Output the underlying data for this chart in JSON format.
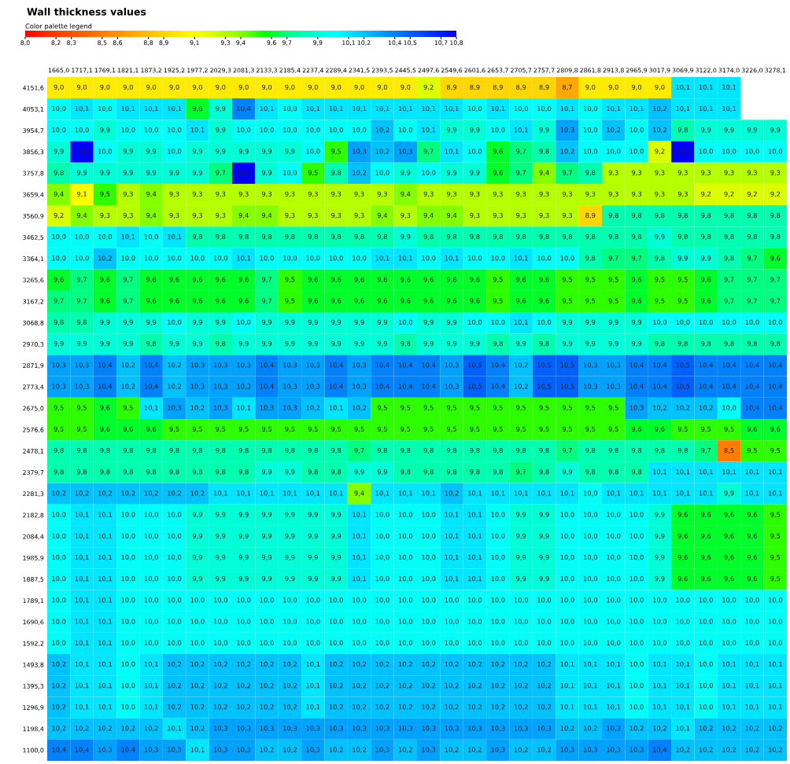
{
  "chart_data": {
    "type": "heatmap",
    "title": "Wall thickness values",
    "clabel": "Color palette legend",
    "colors": [
      "#ff0000",
      "#ff3300",
      "#ff5500",
      "#ff7700",
      "#ff9900",
      "#ffbb00",
      "#ffdd00",
      "#ffff00",
      "#ccff00",
      "#88ff00",
      "#00ff00",
      "#00ff88",
      "#00ffcc",
      "#00ffff",
      "#00ccff",
      "#0099ff",
      "#0066ff",
      "#0033ff",
      "#0000ff"
    ],
    "clim": [
      8.0,
      10.8
    ],
    "cticks": [
      {
        "value": 8.0,
        "label": "8,0"
      },
      {
        "value": 8.2,
        "label": "8,2"
      },
      {
        "value": 8.3,
        "label": "8,3"
      },
      {
        "value": 8.5,
        "label": "8,5"
      },
      {
        "value": 8.6,
        "label": "8,6"
      },
      {
        "value": 8.8,
        "label": "8,8"
      },
      {
        "value": 8.9,
        "label": "8,9"
      },
      {
        "value": 9.1,
        "label": "9,1"
      },
      {
        "value": 9.3,
        "label": "9,3"
      },
      {
        "value": 9.4,
        "label": "9,4"
      },
      {
        "value": 9.6,
        "label": "9,6"
      },
      {
        "value": 9.7,
        "label": "9,7"
      },
      {
        "value": 9.9,
        "label": "9,9"
      },
      {
        "value": 10.1,
        "label": "10,1"
      },
      {
        "value": 10.2,
        "label": "10,2"
      },
      {
        "value": 10.4,
        "label": "10,4"
      },
      {
        "value": 10.5,
        "label": "10,5"
      },
      {
        "value": 10.7,
        "label": "10,7"
      },
      {
        "value": 10.8,
        "label": "10,8"
      }
    ],
    "categories": [
      "1665,0",
      "1717,1",
      "1769,1",
      "1821,1",
      "1873,2",
      "1925,2",
      "1977,2",
      "2029,3",
      "2081,3",
      "2133,3",
      "2185,4",
      "2237,4",
      "2289,4",
      "2341,5",
      "2393,5",
      "2445,5",
      "2497,6",
      "2549,6",
      "2601,6",
      "2653,7",
      "2705,7",
      "2757,7",
      "2809,8",
      "2861,8",
      "2913,8",
      "2965,9",
      "3017,9",
      "3069,9",
      "3122,0",
      "3174,0",
      "3226,0",
      "3278,1"
    ],
    "y_categories": [
      "4151,6",
      "4053,1",
      "3954,7",
      "3856,3",
      "3757,8",
      "3659,4",
      "3560,9",
      "3462,5",
      "3364,1",
      "3265,6",
      "3167,2",
      "3068,8",
      "2970,3",
      "2871,9",
      "2773,4",
      "2675,0",
      "2576,6",
      "2478,1",
      "2379,7",
      "2281,3",
      "2182,8",
      "2084,4",
      "1985,9",
      "1887,5",
      "1789,1",
      "1690,6",
      "1592,2",
      "1493,8",
      "1395,3",
      "1296,9",
      "1198,4",
      "1100,0"
    ],
    "cell_labels": [
      [
        "9,0",
        "9,0",
        "9,0",
        "9,0",
        "9,0",
        "9,0",
        "9,0",
        "9,0",
        "9,0",
        "9,0",
        "9,0",
        "9,0",
        "9,0",
        "9,0",
        "9,0",
        "9,0",
        "9,2",
        "8,9",
        "8,9",
        "8,9",
        "8,9",
        "8,9",
        "8,7",
        "9,0",
        "9,0",
        "9,0",
        "9,0",
        "10,1",
        "10,1",
        "10,1",
        null,
        null
      ],
      [
        "10,0",
        "10,1",
        "10,0",
        "10,1",
        "10,1",
        "10,1",
        "9,6",
        "9,9",
        "10,4",
        "10,1",
        "10,0",
        "10,1",
        "10,1",
        "10,1",
        "10,1",
        "10,1",
        "10,1",
        "10,1",
        "10,0",
        "10,1",
        "10,0",
        "10,0",
        "10,1",
        "10,0",
        "10,1",
        "10,1",
        "10,2",
        "10,1",
        "10,1",
        "10,1",
        null,
        null
      ],
      [
        "10,0",
        "10,0",
        "9,9",
        "10,0",
        "10,0",
        "10,0",
        "10,1",
        "9,9",
        "10,0",
        "10,0",
        "10,0",
        "10,0",
        "10,0",
        "10,0",
        "10,2",
        "10,0",
        "10,1",
        "9,9",
        "9,9",
        "10,0",
        "10,1",
        "9,9",
        "10,3",
        "10,0",
        "10,2",
        "10,0",
        "10,2",
        "9,8",
        "9,9",
        "9,9",
        "9,9",
        "9,9"
      ],
      [
        "9,9",
        "10,8",
        "10,0",
        "9,9",
        "9,9",
        "10,0",
        "9,9",
        "9,9",
        "9,9",
        "9,9",
        "9,9",
        "10,0",
        "9,5",
        "10,3",
        "10,2",
        "10,3",
        "9,7",
        "10,1",
        "10,0",
        "9,6",
        "9,7",
        "9,8",
        "10,2",
        "10,0",
        "10,0",
        "10,0",
        "9,2",
        "10,8",
        "10,0",
        "10,0",
        "10,0",
        "10,0"
      ],
      [
        "9,8",
        "9,9",
        "9,9",
        "9,9",
        "9,9",
        "9,9",
        "9,9",
        "9,7",
        "10,8",
        "9,9",
        "10,0",
        "9,5",
        "9,8",
        "10,2",
        "10,0",
        "9,9",
        "10,0",
        "9,9",
        "9,9",
        "9,6",
        "9,7",
        "9,4",
        "9,7",
        "9,8",
        "9,3",
        "9,3",
        "9,3",
        "9,3",
        "9,3",
        "9,3",
        "9,3",
        "9,3"
      ],
      [
        "9,4",
        "9,1",
        "9,5",
        "9,3",
        "9,4",
        "9,3",
        "9,3",
        "9,3",
        "9,3",
        "9,3",
        "9,3",
        "9,3",
        "9,3",
        "9,3",
        "9,3",
        "9,4",
        "9,3",
        "9,3",
        "9,3",
        "9,3",
        "9,3",
        "9,3",
        "9,3",
        "9,3",
        "9,3",
        "9,3",
        "9,3",
        "9,3",
        "9,2",
        "9,2",
        "9,2",
        "9,2"
      ],
      [
        "9,2",
        "9,4",
        "9,3",
        "9,3",
        "9,4",
        "9,3",
        "9,3",
        "9,3",
        "9,4",
        "9,4",
        "9,3",
        "9,3",
        "9,3",
        "9,3",
        "9,4",
        "9,3",
        "9,4",
        "9,4",
        "9,3",
        "9,3",
        "9,3",
        "9,3",
        "9,3",
        "8,9",
        "9,8",
        "9,8",
        "9,8",
        "9,8",
        "9,8",
        "9,8",
        "9,8",
        "9,8"
      ],
      [
        "10,0",
        "10,0",
        "10,0",
        "10,1",
        "10,0",
        "10,1",
        "9,8",
        "9,8",
        "9,8",
        "9,8",
        "9,8",
        "9,8",
        "9,8",
        "9,8",
        "9,8",
        "9,9",
        "9,8",
        "9,8",
        "9,8",
        "9,8",
        "9,8",
        "9,8",
        "9,8",
        "9,8",
        "9,8",
        "9,8",
        "9,9",
        "9,8",
        "9,8",
        "9,8",
        "9,8",
        "9,8"
      ],
      [
        "10,0",
        "10,0",
        "10,2",
        "10,0",
        "10,0",
        "10,0",
        "10,0",
        "10,0",
        "10,1",
        "10,0",
        "10,0",
        "10,0",
        "10,0",
        "10,0",
        "10,1",
        "10,1",
        "10,0",
        "10,1",
        "10,0",
        "10,0",
        "10,1",
        "10,0",
        "10,0",
        "9,8",
        "9,7",
        "9,7",
        "9,8",
        "9,9",
        "9,9",
        "9,8",
        "9,7",
        "9,6"
      ],
      [
        "9,6",
        "9,7",
        "9,6",
        "9,7",
        "9,6",
        "9,6",
        "9,6",
        "9,6",
        "9,6",
        "9,7",
        "9,5",
        "9,6",
        "9,6",
        "9,6",
        "9,6",
        "9,6",
        "9,6",
        "9,6",
        "9,6",
        "9,5",
        "9,6",
        "9,6",
        "9,5",
        "9,5",
        "9,5",
        "9,6",
        "9,5",
        "9,5",
        "9,6",
        "9,7",
        "9,7",
        "9,7"
      ],
      [
        "9,7",
        "9,7",
        "9,6",
        "9,7",
        "9,6",
        "9,6",
        "9,6",
        "9,6",
        "9,6",
        "9,7",
        "9,5",
        "9,6",
        "9,6",
        "9,6",
        "9,6",
        "9,6",
        "9,6",
        "9,6",
        "9,6",
        "9,5",
        "9,6",
        "9,6",
        "9,5",
        "9,5",
        "9,5",
        "9,6",
        "9,5",
        "9,5",
        "9,6",
        "9,7",
        "9,7",
        "9,7"
      ],
      [
        "9,8",
        "9,8",
        "9,9",
        "9,9",
        "9,9",
        "10,0",
        "9,9",
        "9,9",
        "10,0",
        "9,9",
        "9,9",
        "9,9",
        "9,9",
        "9,9",
        "9,9",
        "10,0",
        "9,9",
        "9,9",
        "10,0",
        "10,0",
        "10,1",
        "10,0",
        "9,9",
        "9,9",
        "9,9",
        "9,9",
        "10,0",
        "10,0",
        "10,0",
        "10,0",
        "10,0",
        "10,0"
      ],
      [
        "9,9",
        "9,9",
        "9,9",
        "9,9",
        "9,8",
        "9,9",
        "9,9",
        "9,8",
        "9,9",
        "9,9",
        "9,9",
        "9,9",
        "9,9",
        "9,9",
        "9,9",
        "9,8",
        "9,9",
        "9,9",
        "9,9",
        "9,8",
        "9,9",
        "9,8",
        "9,9",
        "9,9",
        "9,9",
        "9,9",
        "9,8",
        "9,8",
        "9,8",
        "9,8",
        "9,8",
        "9,8"
      ],
      [
        "10,3",
        "10,3",
        "10,4",
        "10,2",
        "10,4",
        "10,2",
        "10,3",
        "10,3",
        "10,3",
        "10,4",
        "10,3",
        "10,3",
        "10,4",
        "10,3",
        "10,4",
        "10,4",
        "10,4",
        "10,3",
        "10,5",
        "10,4",
        "10,2",
        "10,5",
        "10,5",
        "10,3",
        "10,3",
        "10,4",
        "10,4",
        "10,5",
        "10,4",
        "10,4",
        "10,4",
        "10,4"
      ],
      [
        "10,3",
        "10,3",
        "10,4",
        "10,2",
        "10,4",
        "10,2",
        "10,3",
        "10,3",
        "10,3",
        "10,4",
        "10,3",
        "10,3",
        "10,4",
        "10,3",
        "10,4",
        "10,4",
        "10,4",
        "10,3",
        "10,5",
        "10,4",
        "10,2",
        "10,5",
        "10,5",
        "10,3",
        "10,3",
        "10,4",
        "10,4",
        "10,5",
        "10,4",
        "10,4",
        "10,4",
        "10,4"
      ],
      [
        "9,5",
        "9,5",
        "9,6",
        "9,5",
        "10,1",
        "10,3",
        "10,2",
        "10,3",
        "10,1",
        "10,3",
        "10,3",
        "10,2",
        "10,1",
        "10,2",
        "9,5",
        "9,5",
        "9,5",
        "9,5",
        "9,5",
        "9,5",
        "9,5",
        "9,5",
        "9,5",
        "9,5",
        "9,5",
        "10,3",
        "10,2",
        "10,2",
        "10,2",
        "10,0",
        "10,4",
        "10,4"
      ],
      [
        "9,5",
        "9,5",
        "9,6",
        "9,6",
        "9,6",
        "9,5",
        "9,5",
        "9,5",
        "9,5",
        "9,5",
        "9,5",
        "9,5",
        "9,5",
        "9,5",
        "9,5",
        "9,5",
        "9,5",
        "9,5",
        "9,5",
        "9,5",
        "9,5",
        "9,5",
        "9,5",
        "9,5",
        "9,5",
        "9,6",
        "9,6",
        "9,5",
        "9,5",
        "9,5",
        "9,6",
        "9,6"
      ],
      [
        "9,8",
        "9,8",
        "9,8",
        "9,8",
        "9,8",
        "9,8",
        "9,8",
        "9,8",
        "9,8",
        "9,8",
        "9,8",
        "9,8",
        "9,8",
        "9,7",
        "9,8",
        "9,8",
        "9,8",
        "9,8",
        "9,8",
        "9,8",
        "9,8",
        "9,8",
        "9,7",
        "9,8",
        "9,8",
        "9,8",
        "9,8",
        "9,8",
        "9,7",
        "8,5",
        "9,5",
        "9,5"
      ],
      [
        "9,8",
        "9,8",
        "9,8",
        "9,8",
        "9,8",
        "9,8",
        "9,8",
        "9,8",
        "9,8",
        "9,9",
        "9,9",
        "9,8",
        "9,8",
        "9,9",
        "9,9",
        "9,8",
        "9,8",
        "9,8",
        "9,8",
        "9,8",
        "9,7",
        "9,8",
        "9,9",
        "9,8",
        "9,8",
        "9,8",
        "10,1",
        "10,1",
        "10,1",
        "10,1",
        "10,1",
        "10,1"
      ],
      [
        "10,2",
        "10,2",
        "10,2",
        "10,2",
        "10,2",
        "10,2",
        "10,2",
        "10,1",
        "10,1",
        "10,1",
        "10,1",
        "10,1",
        "10,1",
        "9,4",
        "10,1",
        "10,1",
        "10,1",
        "10,2",
        "10,1",
        "10,1",
        "10,1",
        "10,1",
        "10,1",
        "10,0",
        "10,1",
        "10,1",
        "10,1",
        "10,1",
        "10,1",
        "9,9",
        "10,1",
        "10,1"
      ],
      [
        "10,0",
        "10,1",
        "10,1",
        "10,0",
        "10,0",
        "10,0",
        "9,9",
        "9,9",
        "9,9",
        "9,9",
        "9,9",
        "9,9",
        "9,9",
        "10,1",
        "10,0",
        "10,0",
        "10,0",
        "10,1",
        "10,1",
        "10,0",
        "9,9",
        "9,9",
        "10,0",
        "10,0",
        "10,0",
        "10,0",
        "9,9",
        "9,6",
        "9,6",
        "9,6",
        "9,6",
        "9,5"
      ],
      [
        "10,0",
        "10,1",
        "10,1",
        "10,0",
        "10,0",
        "10,0",
        "9,9",
        "9,9",
        "9,9",
        "9,9",
        "9,9",
        "9,9",
        "9,9",
        "10,1",
        "10,0",
        "10,0",
        "10,0",
        "10,1",
        "10,1",
        "10,0",
        "9,9",
        "9,9",
        "10,0",
        "10,0",
        "10,0",
        "10,0",
        "9,9",
        "9,6",
        "9,6",
        "9,6",
        "9,6",
        "9,5"
      ],
      [
        "10,0",
        "10,1",
        "10,1",
        "10,0",
        "10,0",
        "10,0",
        "9,9",
        "9,9",
        "9,9",
        "9,9",
        "9,9",
        "9,9",
        "9,9",
        "10,1",
        "10,0",
        "10,0",
        "10,0",
        "10,1",
        "10,1",
        "10,0",
        "9,9",
        "9,9",
        "10,0",
        "10,0",
        "10,0",
        "10,0",
        "9,9",
        "9,6",
        "9,6",
        "9,6",
        "9,6",
        "9,5"
      ],
      [
        "10,0",
        "10,1",
        "10,1",
        "10,0",
        "10,0",
        "10,0",
        "9,9",
        "9,9",
        "9,9",
        "9,9",
        "9,9",
        "9,9",
        "9,9",
        "10,1",
        "10,0",
        "10,0",
        "10,0",
        "10,1",
        "10,1",
        "10,0",
        "9,9",
        "9,9",
        "10,0",
        "10,0",
        "10,0",
        "10,0",
        "9,9",
        "9,6",
        "9,6",
        "9,6",
        "9,6",
        "9,5"
      ],
      [
        "10,0",
        "10,1",
        "10,1",
        "10,0",
        "10,0",
        "10,0",
        "10,0",
        "10,0",
        "10,0",
        "10,0",
        "10,0",
        "10,0",
        "10,0",
        "10,0",
        "10,0",
        "10,0",
        "10,0",
        "10,0",
        "10,0",
        "10,0",
        "10,0",
        "10,0",
        "10,0",
        "10,0",
        "10,0",
        "10,0",
        "10,0",
        "10,0",
        "10,0",
        "10,0",
        "10,0",
        "10,0"
      ],
      [
        "10,0",
        "10,1",
        "10,1",
        "10,0",
        "10,0",
        "10,0",
        "10,0",
        "10,0",
        "10,0",
        "10,0",
        "10,0",
        "10,0",
        "10,0",
        "10,0",
        "10,0",
        "10,0",
        "10,0",
        "10,0",
        "10,0",
        "10,0",
        "10,0",
        "10,0",
        "10,0",
        "10,0",
        "10,0",
        "10,0",
        "10,0",
        "10,0",
        "10,0",
        "10,0",
        "10,0",
        "10,0"
      ],
      [
        "10,0",
        "10,1",
        "10,1",
        "10,0",
        "10,0",
        "10,0",
        "10,0",
        "10,0",
        "10,0",
        "10,0",
        "10,0",
        "10,0",
        "10,0",
        "10,0",
        "10,0",
        "10,0",
        "10,0",
        "10,0",
        "10,0",
        "10,0",
        "10,0",
        "10,0",
        "10,0",
        "10,0",
        "10,0",
        "10,0",
        "10,0",
        "10,0",
        "10,0",
        "10,0",
        "10,0",
        "10,0"
      ],
      [
        "10,2",
        "10,1",
        "10,1",
        "10,0",
        "10,1",
        "10,2",
        "10,2",
        "10,2",
        "10,2",
        "10,2",
        "10,2",
        "10,1",
        "10,2",
        "10,2",
        "10,2",
        "10,2",
        "10,2",
        "10,2",
        "10,2",
        "10,2",
        "10,2",
        "10,2",
        "10,1",
        "10,1",
        "10,1",
        "10,0",
        "10,1",
        "10,1",
        "10,0",
        "10,1",
        "10,1",
        "10,1"
      ],
      [
        "10,2",
        "10,1",
        "10,1",
        "10,0",
        "10,1",
        "10,2",
        "10,2",
        "10,2",
        "10,2",
        "10,2",
        "10,2",
        "10,1",
        "10,2",
        "10,2",
        "10,2",
        "10,2",
        "10,2",
        "10,2",
        "10,2",
        "10,2",
        "10,2",
        "10,2",
        "10,1",
        "10,1",
        "10,1",
        "10,0",
        "10,1",
        "10,1",
        "10,0",
        "10,1",
        "10,1",
        "10,1"
      ],
      [
        "10,2",
        "10,1",
        "10,1",
        "10,0",
        "10,1",
        "10,2",
        "10,2",
        "10,2",
        "10,2",
        "10,2",
        "10,2",
        "10,1",
        "10,2",
        "10,2",
        "10,2",
        "10,2",
        "10,2",
        "10,2",
        "10,2",
        "10,2",
        "10,2",
        "10,2",
        "10,1",
        "10,1",
        "10,1",
        "10,0",
        "10,1",
        "10,1",
        "10,0",
        "10,1",
        "10,1",
        "10,1"
      ],
      [
        "10,2",
        "10,2",
        "10,2",
        "10,2",
        "10,2",
        "10,1",
        "10,2",
        "10,3",
        "10,3",
        "10,3",
        "10,3",
        "10,3",
        "10,3",
        "10,3",
        "10,3",
        "10,3",
        "10,3",
        "10,3",
        "10,3",
        "10,3",
        "10,3",
        "10,3",
        "10,2",
        "10,2",
        "10,3",
        "10,2",
        "10,2",
        "10,1",
        "10,2",
        "10,2",
        "10,2",
        "10,2"
      ],
      [
        "10,4",
        "10,4",
        "10,3",
        "10,4",
        "10,3",
        "10,3",
        "10,1",
        "10,3",
        "10,3",
        "10,2",
        "10,2",
        "10,3",
        "10,2",
        "10,2",
        "10,3",
        "10,2",
        "10,3",
        "10,2",
        "10,2",
        "10,3",
        "10,2",
        "10,2",
        "10,3",
        "10,3",
        "10,3",
        "10,3",
        "10,4",
        "10,2",
        "10,2",
        "10,2",
        "10,2",
        "10,2"
      ]
    ],
    "cells": [
      [
        9.0,
        9.0,
        9.0,
        9.0,
        9.0,
        9.0,
        9.0,
        9.0,
        9.0,
        9.0,
        9.0,
        9.0,
        9.0,
        9.0,
        9.0,
        9.0,
        9.2,
        8.9,
        8.9,
        8.9,
        8.9,
        8.9,
        8.7,
        9.0,
        9.0,
        9.0,
        9.0,
        10.1,
        10.1,
        10.1,
        null,
        null
      ],
      [
        10.0,
        10.1,
        10.0,
        10.1,
        10.1,
        10.1,
        9.6,
        9.9,
        10.4,
        10.1,
        10.0,
        10.1,
        10.1,
        10.1,
        10.1,
        10.1,
        10.1,
        10.1,
        10.0,
        10.1,
        10.0,
        10.0,
        10.1,
        10.0,
        10.1,
        10.1,
        10.2,
        10.1,
        10.1,
        10.1,
        null,
        null
      ],
      [
        10.0,
        10.0,
        9.9,
        10.0,
        10.0,
        10.0,
        10.1,
        9.9,
        10.0,
        10.0,
        10.0,
        10.0,
        10.0,
        10.0,
        10.2,
        10.0,
        10.1,
        9.9,
        9.9,
        10.0,
        10.1,
        9.9,
        10.3,
        10.0,
        10.2,
        10.0,
        10.2,
        9.8,
        9.9,
        9.9,
        9.9,
        9.9
      ],
      [
        9.9,
        10.8,
        10.0,
        9.9,
        9.9,
        10.0,
        9.9,
        9.9,
        9.9,
        9.9,
        9.9,
        10.0,
        9.5,
        10.3,
        10.2,
        10.3,
        9.7,
        10.1,
        10.0,
        9.6,
        9.7,
        9.8,
        10.2,
        10.0,
        10.0,
        10.0,
        9.2,
        10.8,
        10.0,
        10.0,
        10.0,
        10.0
      ],
      [
        9.8,
        9.9,
        9.9,
        9.9,
        9.9,
        9.9,
        9.9,
        9.7,
        10.8,
        9.9,
        10.0,
        9.5,
        9.8,
        10.2,
        10.0,
        9.9,
        10.0,
        9.9,
        9.9,
        9.6,
        9.7,
        9.4,
        9.7,
        9.8,
        9.3,
        9.3,
        9.3,
        9.3,
        9.3,
        9.3,
        9.3,
        9.3
      ],
      [
        9.4,
        9.1,
        9.5,
        9.3,
        9.4,
        9.3,
        9.3,
        9.3,
        9.3,
        9.3,
        9.3,
        9.3,
        9.3,
        9.3,
        9.3,
        9.4,
        9.3,
        9.3,
        9.3,
        9.3,
        9.3,
        9.3,
        9.3,
        9.3,
        9.3,
        9.3,
        9.3,
        9.3,
        9.2,
        9.2,
        9.2,
        9.2
      ],
      [
        9.2,
        9.4,
        9.3,
        9.3,
        9.4,
        9.3,
        9.3,
        9.3,
        9.4,
        9.4,
        9.3,
        9.3,
        9.3,
        9.3,
        9.4,
        9.3,
        9.4,
        9.4,
        9.3,
        9.3,
        9.3,
        9.3,
        9.3,
        8.9,
        9.8,
        9.8,
        9.8,
        9.8,
        9.8,
        9.8,
        9.8,
        9.8
      ],
      [
        10.0,
        10.0,
        10.0,
        10.1,
        10.0,
        10.1,
        9.8,
        9.8,
        9.8,
        9.8,
        9.8,
        9.8,
        9.8,
        9.8,
        9.8,
        9.9,
        9.8,
        9.8,
        9.8,
        9.8,
        9.8,
        9.8,
        9.8,
        9.8,
        9.8,
        9.8,
        9.9,
        9.8,
        9.8,
        9.8,
        9.8,
        9.8
      ],
      [
        10.0,
        10.0,
        10.2,
        10.0,
        10.0,
        10.0,
        10.0,
        10.0,
        10.1,
        10.0,
        10.0,
        10.0,
        10.0,
        10.0,
        10.1,
        10.1,
        10.0,
        10.1,
        10.0,
        10.0,
        10.1,
        10.0,
        10.0,
        9.8,
        9.7,
        9.7,
        9.8,
        9.9,
        9.9,
        9.8,
        9.7,
        9.6
      ],
      [
        9.6,
        9.7,
        9.6,
        9.7,
        9.6,
        9.6,
        9.6,
        9.6,
        9.6,
        9.7,
        9.5,
        9.6,
        9.6,
        9.6,
        9.6,
        9.6,
        9.6,
        9.6,
        9.6,
        9.5,
        9.6,
        9.6,
        9.5,
        9.5,
        9.5,
        9.6,
        9.5,
        9.5,
        9.6,
        9.7,
        9.7,
        9.7
      ],
      [
        9.7,
        9.7,
        9.6,
        9.7,
        9.6,
        9.6,
        9.6,
        9.6,
        9.6,
        9.7,
        9.5,
        9.6,
        9.6,
        9.6,
        9.6,
        9.6,
        9.6,
        9.6,
        9.6,
        9.5,
        9.6,
        9.6,
        9.5,
        9.5,
        9.5,
        9.6,
        9.5,
        9.5,
        9.6,
        9.7,
        9.7,
        9.7
      ],
      [
        9.8,
        9.8,
        9.9,
        9.9,
        9.9,
        10.0,
        9.9,
        9.9,
        10.0,
        9.9,
        9.9,
        9.9,
        9.9,
        9.9,
        9.9,
        10.0,
        9.9,
        9.9,
        10.0,
        10.0,
        10.1,
        10.0,
        9.9,
        9.9,
        9.9,
        9.9,
        10.0,
        10.0,
        10.0,
        10.0,
        10.0,
        10.0
      ],
      [
        9.9,
        9.9,
        9.9,
        9.9,
        9.8,
        9.9,
        9.9,
        9.8,
        9.9,
        9.9,
        9.9,
        9.9,
        9.9,
        9.9,
        9.9,
        9.8,
        9.9,
        9.9,
        9.9,
        9.8,
        9.9,
        9.8,
        9.9,
        9.9,
        9.9,
        9.9,
        9.8,
        9.8,
        9.8,
        9.8,
        9.8,
        9.8
      ],
      [
        10.3,
        10.3,
        10.4,
        10.2,
        10.4,
        10.2,
        10.3,
        10.3,
        10.3,
        10.4,
        10.3,
        10.3,
        10.4,
        10.3,
        10.4,
        10.4,
        10.4,
        10.3,
        10.5,
        10.4,
        10.2,
        10.5,
        10.5,
        10.3,
        10.3,
        10.4,
        10.4,
        10.5,
        10.4,
        10.4,
        10.4,
        10.4
      ],
      [
        10.3,
        10.3,
        10.4,
        10.2,
        10.4,
        10.2,
        10.3,
        10.3,
        10.3,
        10.4,
        10.3,
        10.3,
        10.4,
        10.3,
        10.4,
        10.4,
        10.4,
        10.3,
        10.5,
        10.4,
        10.2,
        10.5,
        10.5,
        10.3,
        10.3,
        10.4,
        10.4,
        10.5,
        10.4,
        10.4,
        10.4,
        10.4
      ],
      [
        9.5,
        9.5,
        9.6,
        9.5,
        10.1,
        10.3,
        10.2,
        10.3,
        10.1,
        10.3,
        10.3,
        10.2,
        10.1,
        10.2,
        9.5,
        9.5,
        9.5,
        9.5,
        9.5,
        9.5,
        9.5,
        9.5,
        9.5,
        9.5,
        9.5,
        10.3,
        10.2,
        10.2,
        10.2,
        10.0,
        10.4,
        10.4
      ],
      [
        9.5,
        9.5,
        9.6,
        9.6,
        9.6,
        9.5,
        9.5,
        9.5,
        9.5,
        9.5,
        9.5,
        9.5,
        9.5,
        9.5,
        9.5,
        9.5,
        9.5,
        9.5,
        9.5,
        9.5,
        9.5,
        9.5,
        9.5,
        9.5,
        9.5,
        9.6,
        9.6,
        9.5,
        9.5,
        9.5,
        9.6,
        9.6
      ],
      [
        9.8,
        9.8,
        9.8,
        9.8,
        9.8,
        9.8,
        9.8,
        9.8,
        9.8,
        9.8,
        9.8,
        9.8,
        9.8,
        9.7,
        9.8,
        9.8,
        9.8,
        9.8,
        9.8,
        9.8,
        9.8,
        9.8,
        9.7,
        9.8,
        9.8,
        9.8,
        9.8,
        9.8,
        9.7,
        8.5,
        9.5,
        9.5
      ],
      [
        9.8,
        9.8,
        9.8,
        9.8,
        9.8,
        9.8,
        9.8,
        9.8,
        9.8,
        9.9,
        9.9,
        9.8,
        9.8,
        9.9,
        9.9,
        9.8,
        9.8,
        9.8,
        9.8,
        9.8,
        9.7,
        9.8,
        9.9,
        9.8,
        9.8,
        9.8,
        10.1,
        10.1,
        10.1,
        10.1,
        10.1,
        10.1
      ],
      [
        10.2,
        10.2,
        10.2,
        10.2,
        10.2,
        10.2,
        10.2,
        10.1,
        10.1,
        10.1,
        10.1,
        10.1,
        10.1,
        9.4,
        10.1,
        10.1,
        10.1,
        10.2,
        10.1,
        10.1,
        10.1,
        10.1,
        10.1,
        10.0,
        10.1,
        10.1,
        10.1,
        10.1,
        10.1,
        9.9,
        10.1,
        10.1
      ],
      [
        10.0,
        10.1,
        10.1,
        10.0,
        10.0,
        10.0,
        9.9,
        9.9,
        9.9,
        9.9,
        9.9,
        9.9,
        9.9,
        10.1,
        10.0,
        10.0,
        10.0,
        10.1,
        10.1,
        10.0,
        9.9,
        9.9,
        10.0,
        10.0,
        10.0,
        10.0,
        9.9,
        9.6,
        9.6,
        9.6,
        9.6,
        9.5
      ],
      [
        10.0,
        10.1,
        10.1,
        10.0,
        10.0,
        10.0,
        9.9,
        9.9,
        9.9,
        9.9,
        9.9,
        9.9,
        9.9,
        10.1,
        10.0,
        10.0,
        10.0,
        10.1,
        10.1,
        10.0,
        9.9,
        9.9,
        10.0,
        10.0,
        10.0,
        10.0,
        9.9,
        9.6,
        9.6,
        9.6,
        9.6,
        9.5
      ],
      [
        10.0,
        10.1,
        10.1,
        10.0,
        10.0,
        10.0,
        9.9,
        9.9,
        9.9,
        9.9,
        9.9,
        9.9,
        9.9,
        10.1,
        10.0,
        10.0,
        10.0,
        10.1,
        10.1,
        10.0,
        9.9,
        9.9,
        10.0,
        10.0,
        10.0,
        10.0,
        9.9,
        9.6,
        9.6,
        9.6,
        9.6,
        9.5
      ],
      [
        10.0,
        10.1,
        10.1,
        10.0,
        10.0,
        10.0,
        9.9,
        9.9,
        9.9,
        9.9,
        9.9,
        9.9,
        9.9,
        10.1,
        10.0,
        10.0,
        10.0,
        10.1,
        10.1,
        10.0,
        9.9,
        9.9,
        10.0,
        10.0,
        10.0,
        10.0,
        9.9,
        9.6,
        9.6,
        9.6,
        9.6,
        9.5
      ],
      [
        10.0,
        10.1,
        10.1,
        10.0,
        10.0,
        10.0,
        10.0,
        10.0,
        10.0,
        10.0,
        10.0,
        10.0,
        10.0,
        10.0,
        10.0,
        10.0,
        10.0,
        10.0,
        10.0,
        10.0,
        10.0,
        10.0,
        10.0,
        10.0,
        10.0,
        10.0,
        10.0,
        10.0,
        10.0,
        10.0,
        10.0,
        10.0
      ],
      [
        10.0,
        10.1,
        10.1,
        10.0,
        10.0,
        10.0,
        10.0,
        10.0,
        10.0,
        10.0,
        10.0,
        10.0,
        10.0,
        10.0,
        10.0,
        10.0,
        10.0,
        10.0,
        10.0,
        10.0,
        10.0,
        10.0,
        10.0,
        10.0,
        10.0,
        10.0,
        10.0,
        10.0,
        10.0,
        10.0,
        10.0,
        10.0
      ],
      [
        10.0,
        10.1,
        10.1,
        10.0,
        10.0,
        10.0,
        10.0,
        10.0,
        10.0,
        10.0,
        10.0,
        10.0,
        10.0,
        10.0,
        10.0,
        10.0,
        10.0,
        10.0,
        10.0,
        10.0,
        10.0,
        10.0,
        10.0,
        10.0,
        10.0,
        10.0,
        10.0,
        10.0,
        10.0,
        10.0,
        10.0,
        10.0
      ],
      [
        10.2,
        10.1,
        10.1,
        10.0,
        10.1,
        10.2,
        10.2,
        10.2,
        10.2,
        10.2,
        10.2,
        10.1,
        10.2,
        10.2,
        10.2,
        10.2,
        10.2,
        10.2,
        10.2,
        10.2,
        10.2,
        10.2,
        10.1,
        10.1,
        10.1,
        10.0,
        10.1,
        10.1,
        10.0,
        10.1,
        10.1,
        10.1
      ],
      [
        10.2,
        10.1,
        10.1,
        10.0,
        10.1,
        10.2,
        10.2,
        10.2,
        10.2,
        10.2,
        10.2,
        10.1,
        10.2,
        10.2,
        10.2,
        10.2,
        10.2,
        10.2,
        10.2,
        10.2,
        10.2,
        10.2,
        10.1,
        10.1,
        10.1,
        10.0,
        10.1,
        10.1,
        10.0,
        10.1,
        10.1,
        10.1
      ],
      [
        10.2,
        10.1,
        10.1,
        10.0,
        10.1,
        10.2,
        10.2,
        10.2,
        10.2,
        10.2,
        10.2,
        10.1,
        10.2,
        10.2,
        10.2,
        10.2,
        10.2,
        10.2,
        10.2,
        10.2,
        10.2,
        10.2,
        10.1,
        10.1,
        10.1,
        10.0,
        10.1,
        10.1,
        10.0,
        10.1,
        10.1,
        10.1
      ],
      [
        10.2,
        10.2,
        10.2,
        10.2,
        10.2,
        10.1,
        10.2,
        10.3,
        10.3,
        10.3,
        10.3,
        10.3,
        10.3,
        10.3,
        10.3,
        10.3,
        10.3,
        10.3,
        10.3,
        10.3,
        10.3,
        10.3,
        10.2,
        10.2,
        10.3,
        10.2,
        10.2,
        10.1,
        10.2,
        10.2,
        10.2,
        10.2
      ],
      [
        10.4,
        10.4,
        10.3,
        10.4,
        10.3,
        10.3,
        10.1,
        10.3,
        10.3,
        10.2,
        10.2,
        10.3,
        10.2,
        10.2,
        10.3,
        10.2,
        10.3,
        10.2,
        10.2,
        10.3,
        10.2,
        10.2,
        10.3,
        10.3,
        10.3,
        10.3,
        10.4,
        10.2,
        10.2,
        10.2,
        10.2,
        10.2
      ]
    ]
  }
}
